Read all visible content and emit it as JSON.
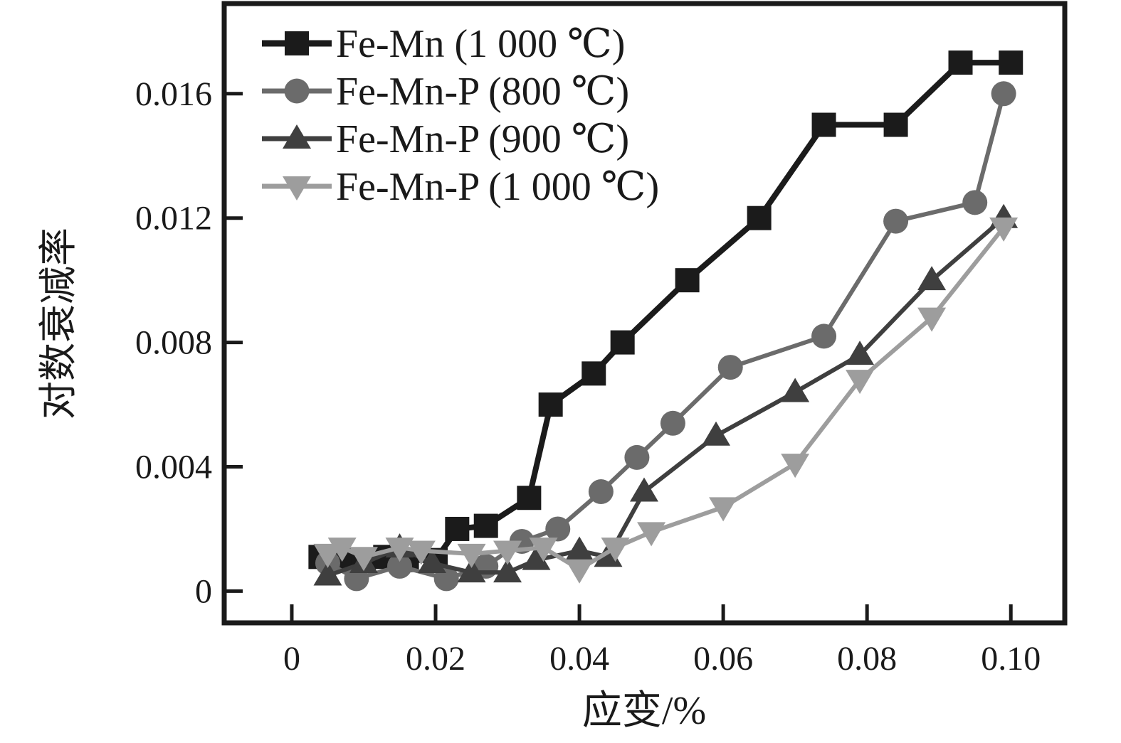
{
  "page": {
    "background": "#ffffff"
  },
  "chart_data": {
    "type": "line",
    "title": "",
    "xlabel": "应变/%",
    "ylabel": "对数衰减率",
    "xlim": [
      -0.0094,
      0.1075
    ],
    "ylim": [
      -0.00102,
      0.0189
    ],
    "grid": false,
    "legend_position": "top-left-inside",
    "axis_color": "#1a1a1a",
    "xticks": {
      "values": [
        0,
        0.02,
        0.04,
        0.06,
        0.08,
        0.1
      ],
      "labels": [
        "0",
        "0.02",
        "0.04",
        "0.06",
        "0.08",
        "0.10"
      ]
    },
    "yticks": {
      "values": [
        0,
        0.004,
        0.008,
        0.012,
        0.016
      ],
      "labels": [
        "0",
        "0.004",
        "0.008",
        "0.012",
        "0.016"
      ]
    },
    "series": [
      {
        "name": "Fe-Mn (1 000 ℃)",
        "color": "#1b1b1b",
        "marker": "square",
        "x": [
          0.004,
          0.007,
          0.01,
          0.013,
          0.016,
          0.02,
          0.023,
          0.027,
          0.033,
          0.036,
          0.042,
          0.046,
          0.055,
          0.065,
          0.074,
          0.084,
          0.093,
          0.1
        ],
        "y": [
          0.0011,
          0.001,
          0.001,
          0.0011,
          0.001,
          0.001,
          0.002,
          0.0021,
          0.003,
          0.006,
          0.007,
          0.008,
          0.01,
          0.012,
          0.015,
          0.015,
          0.017,
          0.017
        ]
      },
      {
        "name": "Fe-Mn-P (800 ℃)",
        "color": "#6b6b6b",
        "marker": "circle",
        "x": [
          0.005,
          0.009,
          0.015,
          0.0215,
          0.027,
          0.032,
          0.037,
          0.043,
          0.048,
          0.053,
          0.061,
          0.074,
          0.084,
          0.095,
          0.099
        ],
        "y": [
          0.0009,
          0.0004,
          0.0008,
          0.0004,
          0.0008,
          0.0016,
          0.002,
          0.0032,
          0.0043,
          0.0054,
          0.0072,
          0.0082,
          0.0119,
          0.0125,
          0.016
        ]
      },
      {
        "name": "Fe-Mn-P (900 ℃)",
        "color": "#3f3f3f",
        "marker": "triangle-up",
        "x": [
          0.005,
          0.01,
          0.015,
          0.0195,
          0.025,
          0.03,
          0.034,
          0.04,
          0.044,
          0.049,
          0.059,
          0.07,
          0.079,
          0.089,
          0.099
        ],
        "y": [
          0.0005,
          0.0009,
          0.0014,
          0.0009,
          0.0006,
          0.0006,
          0.001,
          0.0013,
          0.0011,
          0.0032,
          0.005,
          0.0064,
          0.0076,
          0.01,
          0.012
        ]
      },
      {
        "name": "Fe-Mn-P (1 000 ℃)",
        "color": "#9d9d9d",
        "marker": "triangle-down",
        "x": [
          0.005,
          0.007,
          0.01,
          0.015,
          0.018,
          0.025,
          0.03,
          0.035,
          0.04,
          0.045,
          0.05,
          0.06,
          0.07,
          0.079,
          0.089,
          0.099
        ],
        "y": [
          0.0012,
          0.0014,
          0.0011,
          0.0014,
          0.0013,
          0.0012,
          0.0013,
          0.0014,
          0.0007,
          0.0014,
          0.0019,
          0.0027,
          0.0041,
          0.0068,
          0.0088,
          0.0117
        ]
      }
    ]
  }
}
